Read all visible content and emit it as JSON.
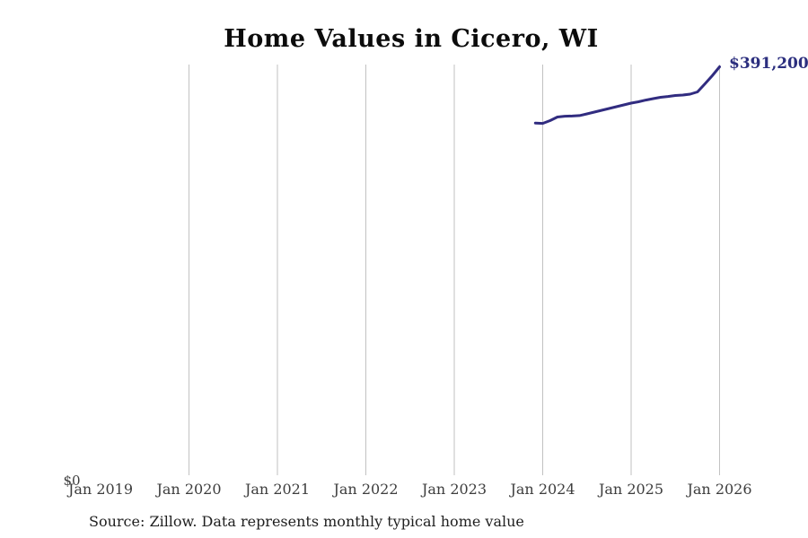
{
  "chart": {
    "title": "Home Values in Cicero, WI",
    "y_zero_label": "$0",
    "end_label": "$391,200",
    "source": "Source: Zillow. Data represents monthly typical home value"
  },
  "colors": {
    "line": "#312c80",
    "end_label": "#2b2e7e",
    "grid": "#c2c2c2",
    "axis_text": "#3d3d3d",
    "title_text": "#0c0c0c",
    "background": "#ffffff"
  },
  "chart_data": {
    "type": "line",
    "title": "Home Values in Cicero, WI",
    "x": [
      "Dec 2023",
      "Jan 2024",
      "Feb 2024",
      "Mar 2024",
      "Apr 2024",
      "May 2024",
      "Jun 2024",
      "Jul 2024",
      "Aug 2024",
      "Sep 2024",
      "Oct 2024",
      "Nov 2024",
      "Dec 2024",
      "Jan 2025",
      "Feb 2025",
      "Mar 2025",
      "Apr 2025",
      "May 2025",
      "Jun 2025",
      "Jul 2025",
      "Aug 2025",
      "Sep 2025",
      "Oct 2025",
      "Nov 2025",
      "Dec 2025",
      "Jan 2026"
    ],
    "values": [
      337900,
      337600,
      340200,
      343600,
      344400,
      344600,
      345000,
      346600,
      348300,
      350000,
      351700,
      353400,
      355100,
      356800,
      358100,
      359700,
      361000,
      362300,
      363100,
      364000,
      364400,
      365300,
      367400,
      375000,
      382700,
      391200
    ],
    "series_name": "Typical home value",
    "end_point_label": "$391,200",
    "end_point_value": 391200,
    "xlabel": "",
    "ylabel": "",
    "x_axis_ticks": [
      "Jan 2019",
      "Jan 2020",
      "Jan 2021",
      "Jan 2022",
      "Jan 2023",
      "Jan 2024",
      "Jan 2025",
      "Jan 2026"
    ],
    "gridline_ticks": [
      "Jan 2020",
      "Jan 2021",
      "Jan 2022",
      "Jan 2023",
      "Jan 2024",
      "Jan 2025",
      "Jan 2026"
    ],
    "y_axis_ticks": [
      "$0"
    ],
    "ylim": [
      0,
      391200
    ],
    "grid": "vertical only",
    "legend": "none",
    "source": "Source: Zillow. Data represents monthly typical home value"
  }
}
